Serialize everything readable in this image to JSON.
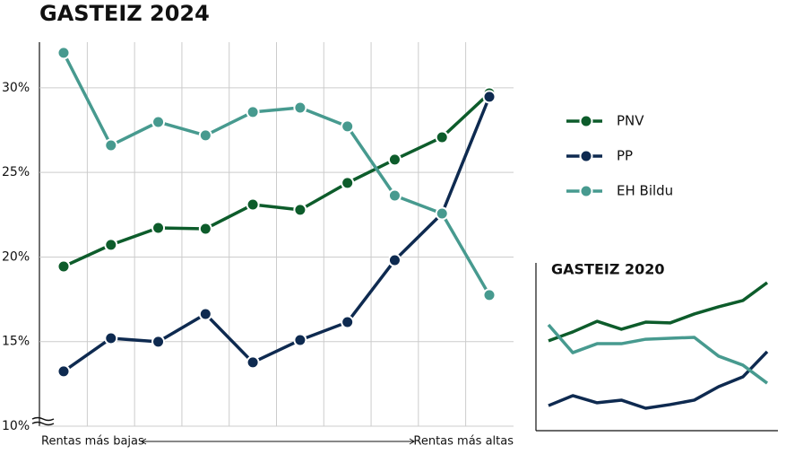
{
  "chart_data": [
    {
      "type": "line",
      "title": "GASTEIZ 2024",
      "categories": [
        null,
        null,
        null,
        null,
        null,
        null,
        null,
        null,
        null,
        null
      ],
      "ylim": [
        10,
        32.7
      ],
      "yticks": [
        {
          "value": 10,
          "label": "10%"
        },
        {
          "value": 15,
          "label": "15%"
        },
        {
          "value": 20,
          "label": "20%"
        },
        {
          "value": 25,
          "label": "25%"
        },
        {
          "value": 30,
          "label": "30%"
        }
      ],
      "grid": true,
      "x_label_left": "Rentas más bajas",
      "x_label_right": "Rentas más altas",
      "legend": "right",
      "series": [
        {
          "name": "PNV",
          "color": "#0d5c2b",
          "values": [
            19.44,
            20.72,
            21.72,
            21.67,
            23.1,
            22.79,
            24.38,
            25.76,
            27.08,
            29.68
          ]
        },
        {
          "name": "PP",
          "color": "#0e2a50",
          "values": [
            13.24,
            15.2,
            14.99,
            16.63,
            13.77,
            15.09,
            16.15,
            19.81,
            22.57,
            29.47
          ]
        },
        {
          "name": "EH Bildu",
          "color": "#479a8f",
          "values": [
            32.07,
            26.6,
            27.98,
            27.19,
            28.57,
            28.83,
            27.72,
            23.63,
            22.57,
            17.75
          ]
        }
      ]
    },
    {
      "type": "line",
      "title": "GASTEIZ 2020",
      "categories": [
        null,
        null,
        null,
        null,
        null,
        null,
        null,
        null,
        null,
        null
      ],
      "ylim": [
        0,
        100
      ],
      "series": [
        {
          "color": "#0d5c2b",
          "values": [
            54.1,
            59.5,
            65.9,
            61.1,
            65.4,
            64.9,
            70.3,
            74.6,
            78.4,
            89.2
          ]
        },
        {
          "color": "#0e2a50",
          "values": [
            15.1,
            21.1,
            16.8,
            18.4,
            13.5,
            15.7,
            18.4,
            26.5,
            32.4,
            47.6
          ]
        },
        {
          "color": "#479a8f",
          "values": [
            63.8,
            47.0,
            52.4,
            52.4,
            55.1,
            55.7,
            56.2,
            44.9,
            39.5,
            28.6
          ]
        }
      ]
    }
  ]
}
